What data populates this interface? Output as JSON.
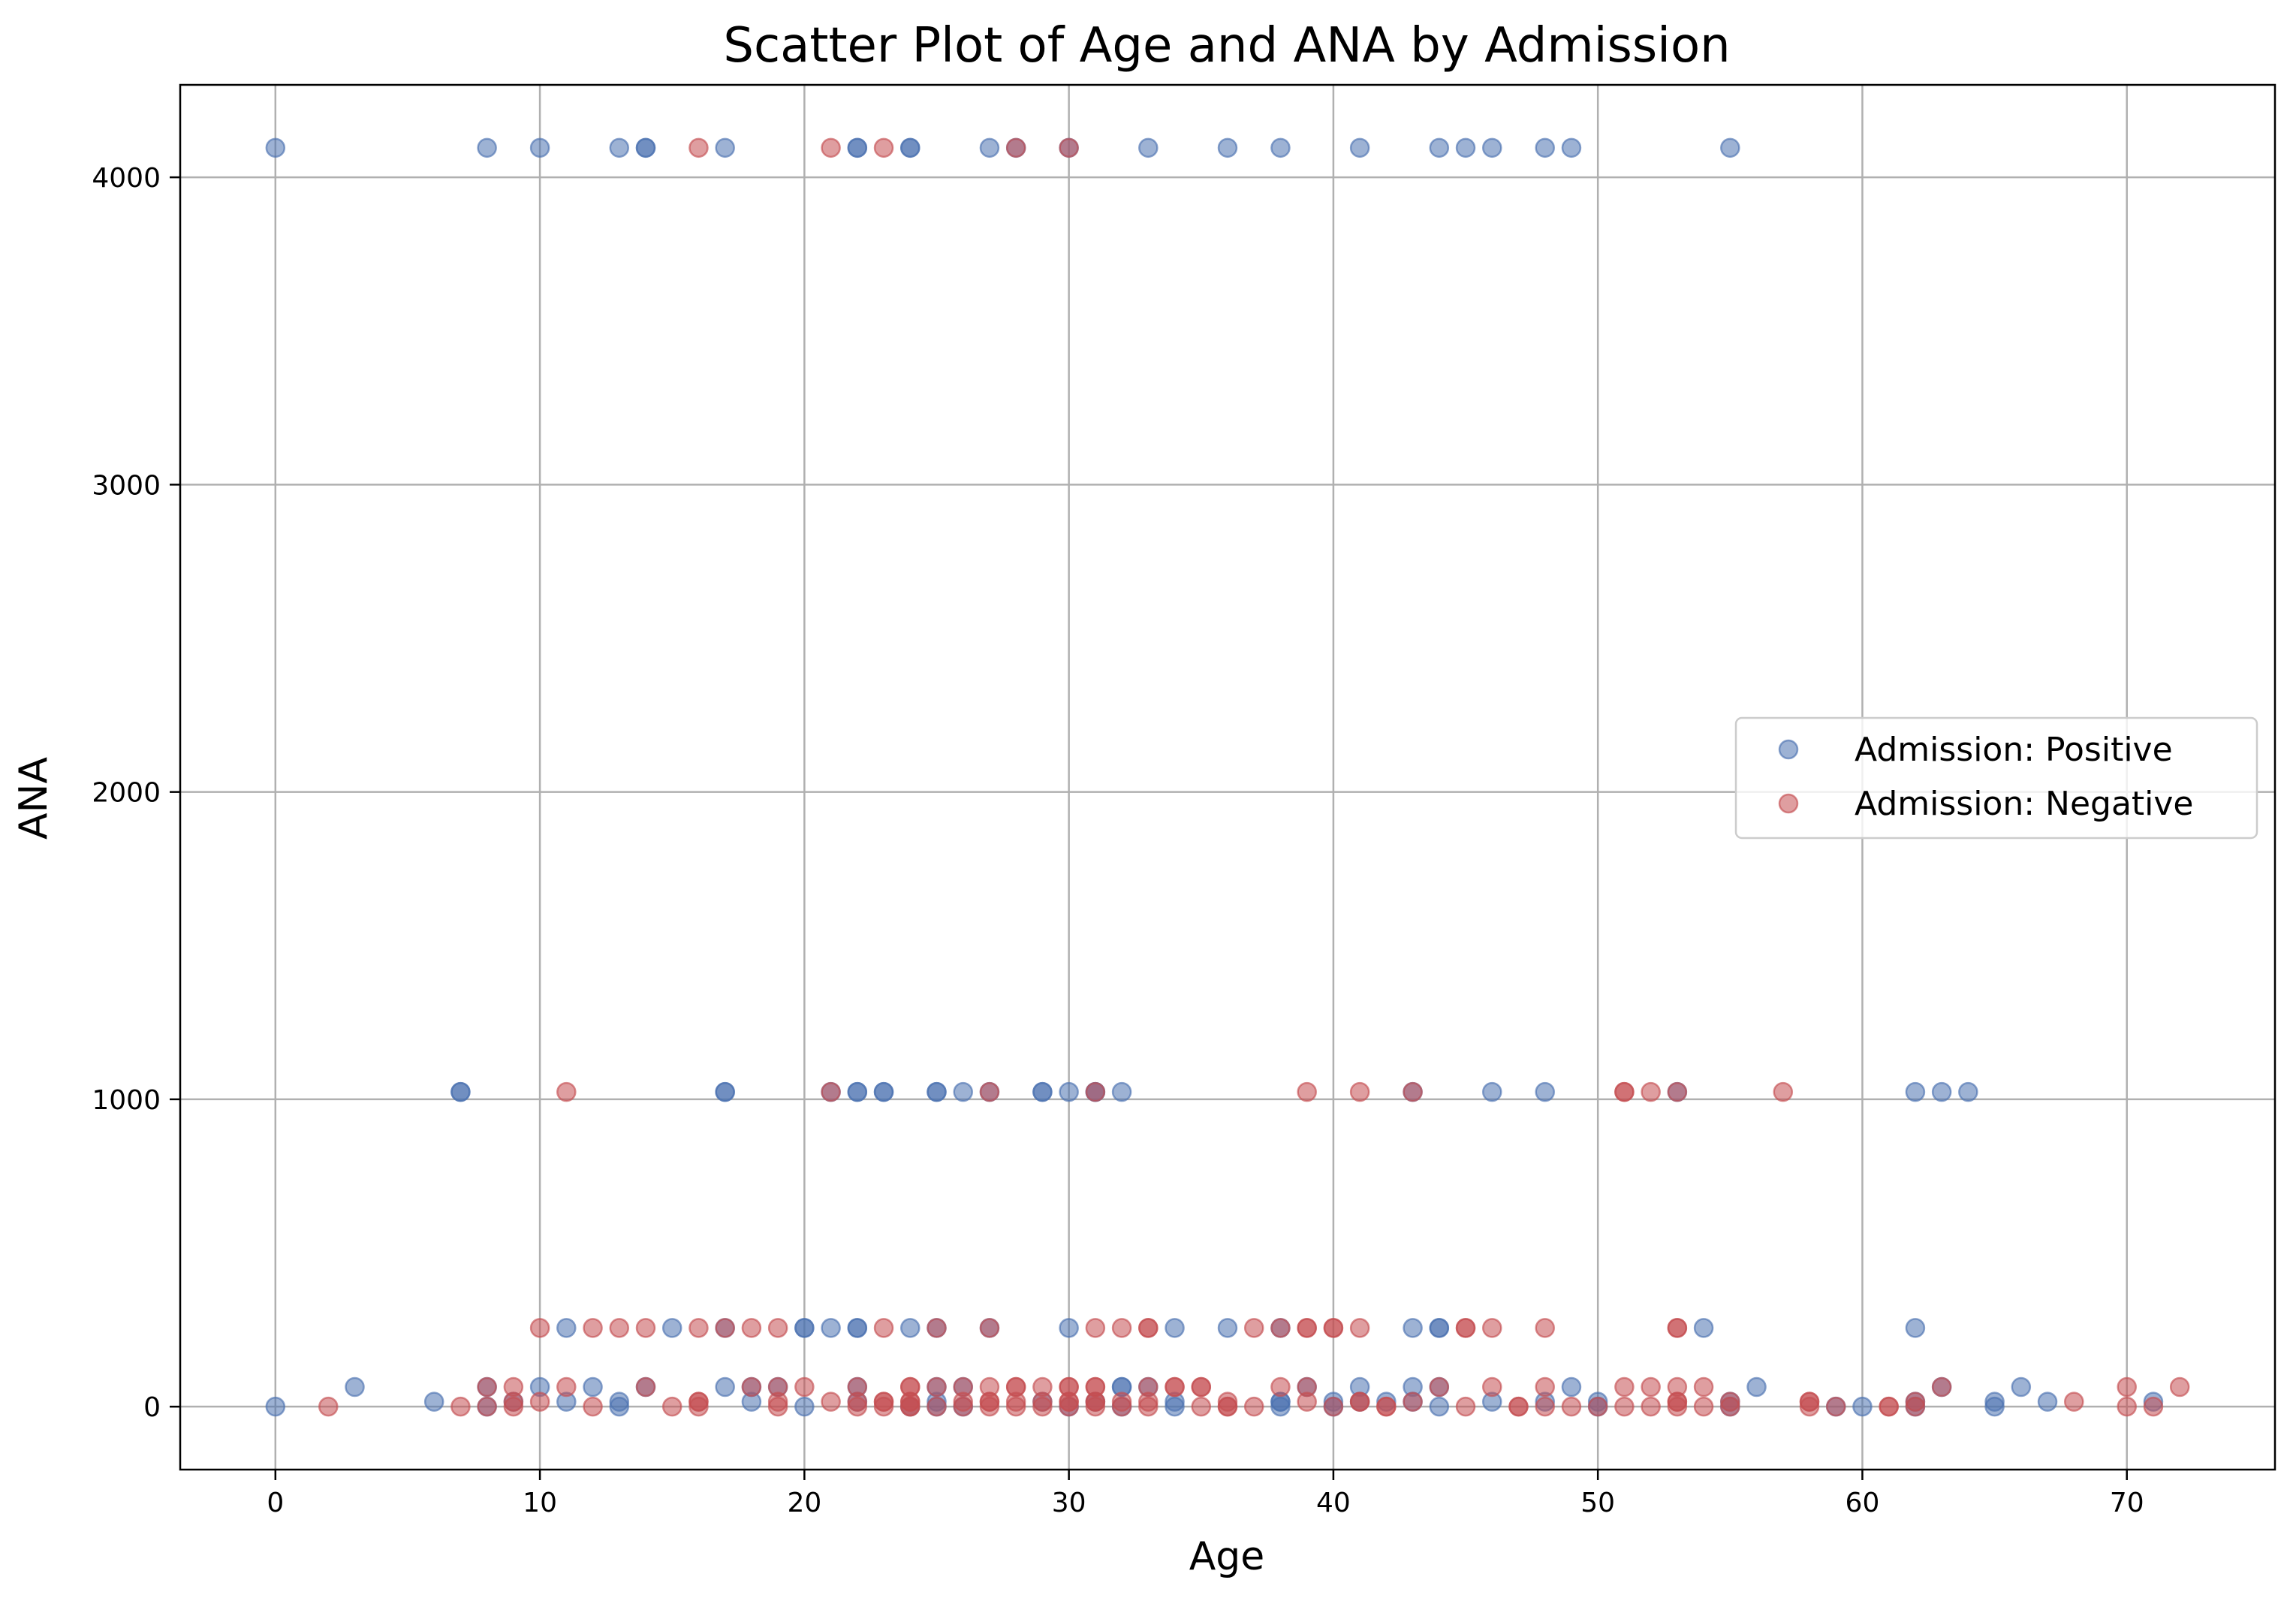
{
  "chart_data": {
    "type": "scatter",
    "title": "Scatter Plot of Age and ANA by Admission",
    "xlabel": "Age",
    "ylabel": "ANA",
    "xlim": [
      -3.6,
      75.6
    ],
    "ylim": [
      -204.8,
      4300.8
    ],
    "xticks": [
      0,
      10,
      20,
      30,
      40,
      50,
      60,
      70
    ],
    "yticks": [
      0,
      1000,
      2000,
      3000,
      4000
    ],
    "grid": true,
    "legend_position": "center-right",
    "series": [
      {
        "name": "Admission: Positive",
        "color": "#4c72b0",
        "points": [
          [
            0,
            4096
          ],
          [
            8,
            4096
          ],
          [
            10,
            4096
          ],
          [
            13,
            4096
          ],
          [
            14,
            4096
          ],
          [
            14,
            4096
          ],
          [
            17,
            4096
          ],
          [
            22,
            4096
          ],
          [
            22,
            4096
          ],
          [
            24,
            4096
          ],
          [
            24,
            4096
          ],
          [
            27,
            4096
          ],
          [
            28,
            4096
          ],
          [
            30,
            4096
          ],
          [
            33,
            4096
          ],
          [
            36,
            4096
          ],
          [
            38,
            4096
          ],
          [
            41,
            4096
          ],
          [
            44,
            4096
          ],
          [
            45,
            4096
          ],
          [
            46,
            4096
          ],
          [
            48,
            4096
          ],
          [
            49,
            4096
          ],
          [
            55,
            4096
          ],
          [
            7,
            1024
          ],
          [
            7,
            1024
          ],
          [
            17,
            1024
          ],
          [
            17,
            1024
          ],
          [
            21,
            1024
          ],
          [
            22,
            1024
          ],
          [
            22,
            1024
          ],
          [
            23,
            1024
          ],
          [
            23,
            1024
          ],
          [
            25,
            1024
          ],
          [
            25,
            1024
          ],
          [
            26,
            1024
          ],
          [
            27,
            1024
          ],
          [
            29,
            1024
          ],
          [
            29,
            1024
          ],
          [
            30,
            1024
          ],
          [
            31,
            1024
          ],
          [
            31,
            1024
          ],
          [
            32,
            1024
          ],
          [
            43,
            1024
          ],
          [
            46,
            1024
          ],
          [
            48,
            1024
          ],
          [
            53,
            1024
          ],
          [
            62,
            1024
          ],
          [
            63,
            1024
          ],
          [
            64,
            1024
          ],
          [
            11,
            256
          ],
          [
            15,
            256
          ],
          [
            17,
            256
          ],
          [
            20,
            256
          ],
          [
            20,
            256
          ],
          [
            21,
            256
          ],
          [
            22,
            256
          ],
          [
            22,
            256
          ],
          [
            24,
            256
          ],
          [
            25,
            256
          ],
          [
            27,
            256
          ],
          [
            30,
            256
          ],
          [
            34,
            256
          ],
          [
            36,
            256
          ],
          [
            38,
            256
          ],
          [
            43,
            256
          ],
          [
            44,
            256
          ],
          [
            44,
            256
          ],
          [
            54,
            256
          ],
          [
            62,
            256
          ],
          [
            3,
            64
          ],
          [
            8,
            64
          ],
          [
            10,
            64
          ],
          [
            12,
            64
          ],
          [
            14,
            64
          ],
          [
            17,
            64
          ],
          [
            18,
            64
          ],
          [
            19,
            64
          ],
          [
            22,
            64
          ],
          [
            25,
            64
          ],
          [
            26,
            64
          ],
          [
            32,
            64
          ],
          [
            32,
            64
          ],
          [
            33,
            64
          ],
          [
            39,
            64
          ],
          [
            41,
            64
          ],
          [
            43,
            64
          ],
          [
            44,
            64
          ],
          [
            49,
            64
          ],
          [
            56,
            64
          ],
          [
            63,
            64
          ],
          [
            66,
            64
          ],
          [
            6,
            16
          ],
          [
            9,
            16
          ],
          [
            11,
            16
          ],
          [
            13,
            16
          ],
          [
            18,
            16
          ],
          [
            22,
            16
          ],
          [
            25,
            16
          ],
          [
            29,
            16
          ],
          [
            31,
            16
          ],
          [
            34,
            16
          ],
          [
            38,
            16
          ],
          [
            38,
            16
          ],
          [
            40,
            16
          ],
          [
            41,
            16
          ],
          [
            42,
            16
          ],
          [
            43,
            16
          ],
          [
            46,
            16
          ],
          [
            48,
            16
          ],
          [
            50,
            16
          ],
          [
            55,
            16
          ],
          [
            62,
            16
          ],
          [
            65,
            16
          ],
          [
            67,
            16
          ],
          [
            71,
            16
          ],
          [
            0,
            0
          ],
          [
            8,
            0
          ],
          [
            13,
            0
          ],
          [
            20,
            0
          ],
          [
            24,
            0
          ],
          [
            25,
            0
          ],
          [
            26,
            0
          ],
          [
            30,
            0
          ],
          [
            32,
            0
          ],
          [
            34,
            0
          ],
          [
            38,
            0
          ],
          [
            40,
            0
          ],
          [
            44,
            0
          ],
          [
            50,
            0
          ],
          [
            55,
            0
          ],
          [
            59,
            0
          ],
          [
            60,
            0
          ],
          [
            62,
            0
          ],
          [
            65,
            0
          ]
        ]
      },
      {
        "name": "Admission: Negative",
        "color": "#c44e52",
        "points": [
          [
            16,
            4096
          ],
          [
            21,
            4096
          ],
          [
            23,
            4096
          ],
          [
            28,
            4096
          ],
          [
            30,
            4096
          ],
          [
            11,
            1024
          ],
          [
            21,
            1024
          ],
          [
            27,
            1024
          ],
          [
            31,
            1024
          ],
          [
            39,
            1024
          ],
          [
            41,
            1024
          ],
          [
            43,
            1024
          ],
          [
            51,
            1024
          ],
          [
            51,
            1024
          ],
          [
            52,
            1024
          ],
          [
            53,
            1024
          ],
          [
            57,
            1024
          ],
          [
            10,
            256
          ],
          [
            12,
            256
          ],
          [
            13,
            256
          ],
          [
            14,
            256
          ],
          [
            16,
            256
          ],
          [
            17,
            256
          ],
          [
            18,
            256
          ],
          [
            19,
            256
          ],
          [
            23,
            256
          ],
          [
            25,
            256
          ],
          [
            27,
            256
          ],
          [
            31,
            256
          ],
          [
            32,
            256
          ],
          [
            33,
            256
          ],
          [
            33,
            256
          ],
          [
            37,
            256
          ],
          [
            38,
            256
          ],
          [
            39,
            256
          ],
          [
            39,
            256
          ],
          [
            40,
            256
          ],
          [
            40,
            256
          ],
          [
            41,
            256
          ],
          [
            45,
            256
          ],
          [
            45,
            256
          ],
          [
            46,
            256
          ],
          [
            48,
            256
          ],
          [
            53,
            256
          ],
          [
            53,
            256
          ],
          [
            8,
            64
          ],
          [
            9,
            64
          ],
          [
            11,
            64
          ],
          [
            14,
            64
          ],
          [
            18,
            64
          ],
          [
            19,
            64
          ],
          [
            20,
            64
          ],
          [
            22,
            64
          ],
          [
            24,
            64
          ],
          [
            24,
            64
          ],
          [
            25,
            64
          ],
          [
            26,
            64
          ],
          [
            27,
            64
          ],
          [
            28,
            64
          ],
          [
            28,
            64
          ],
          [
            29,
            64
          ],
          [
            30,
            64
          ],
          [
            30,
            64
          ],
          [
            31,
            64
          ],
          [
            31,
            64
          ],
          [
            33,
            64
          ],
          [
            34,
            64
          ],
          [
            34,
            64
          ],
          [
            35,
            64
          ],
          [
            35,
            64
          ],
          [
            38,
            64
          ],
          [
            39,
            64
          ],
          [
            44,
            64
          ],
          [
            46,
            64
          ],
          [
            48,
            64
          ],
          [
            51,
            64
          ],
          [
            52,
            64
          ],
          [
            53,
            64
          ],
          [
            54,
            64
          ],
          [
            63,
            64
          ],
          [
            70,
            64
          ],
          [
            72,
            64
          ],
          [
            9,
            16
          ],
          [
            10,
            16
          ],
          [
            16,
            16
          ],
          [
            16,
            16
          ],
          [
            19,
            16
          ],
          [
            21,
            16
          ],
          [
            22,
            16
          ],
          [
            23,
            16
          ],
          [
            23,
            16
          ],
          [
            24,
            16
          ],
          [
            24,
            16
          ],
          [
            26,
            16
          ],
          [
            27,
            16
          ],
          [
            27,
            16
          ],
          [
            28,
            16
          ],
          [
            29,
            16
          ],
          [
            30,
            16
          ],
          [
            30,
            16
          ],
          [
            31,
            16
          ],
          [
            31,
            16
          ],
          [
            32,
            16
          ],
          [
            33,
            16
          ],
          [
            36,
            16
          ],
          [
            39,
            16
          ],
          [
            41,
            16
          ],
          [
            41,
            16
          ],
          [
            43,
            16
          ],
          [
            53,
            16
          ],
          [
            53,
            16
          ],
          [
            55,
            16
          ],
          [
            58,
            16
          ],
          [
            58,
            16
          ],
          [
            62,
            16
          ],
          [
            68,
            16
          ],
          [
            2,
            0
          ],
          [
            7,
            0
          ],
          [
            8,
            0
          ],
          [
            9,
            0
          ],
          [
            12,
            0
          ],
          [
            15,
            0
          ],
          [
            16,
            0
          ],
          [
            19,
            0
          ],
          [
            22,
            0
          ],
          [
            23,
            0
          ],
          [
            24,
            0
          ],
          [
            24,
            0
          ],
          [
            25,
            0
          ],
          [
            26,
            0
          ],
          [
            27,
            0
          ],
          [
            28,
            0
          ],
          [
            29,
            0
          ],
          [
            30,
            0
          ],
          [
            31,
            0
          ],
          [
            32,
            0
          ],
          [
            33,
            0
          ],
          [
            35,
            0
          ],
          [
            36,
            0
          ],
          [
            36,
            0
          ],
          [
            37,
            0
          ],
          [
            40,
            0
          ],
          [
            42,
            0
          ],
          [
            42,
            0
          ],
          [
            45,
            0
          ],
          [
            47,
            0
          ],
          [
            47,
            0
          ],
          [
            48,
            0
          ],
          [
            49,
            0
          ],
          [
            50,
            0
          ],
          [
            51,
            0
          ],
          [
            52,
            0
          ],
          [
            53,
            0
          ],
          [
            54,
            0
          ],
          [
            55,
            0
          ],
          [
            58,
            0
          ],
          [
            59,
            0
          ],
          [
            61,
            0
          ],
          [
            61,
            0
          ],
          [
            62,
            0
          ],
          [
            70,
            0
          ],
          [
            71,
            0
          ]
        ]
      }
    ]
  }
}
